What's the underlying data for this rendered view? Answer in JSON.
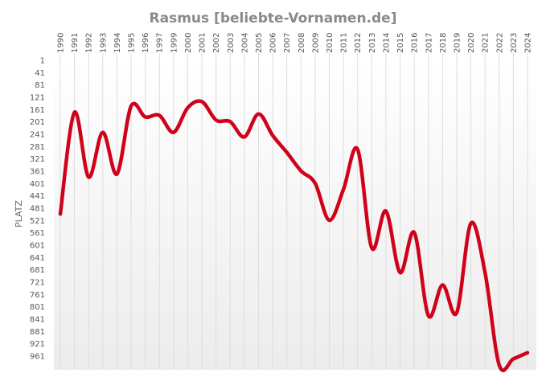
{
  "chart_data": {
    "type": "line",
    "title": "Rasmus [beliebte-Vornamen.de]",
    "xlabel": "",
    "ylabel": "PLATZ",
    "y_inverted": true,
    "ylim": [
      1,
      1000
    ],
    "y_ticks": [
      1,
      41,
      81,
      121,
      161,
      201,
      241,
      281,
      321,
      361,
      401,
      441,
      481,
      521,
      561,
      601,
      641,
      681,
      721,
      761,
      801,
      841,
      881,
      921,
      961
    ],
    "x_tick_rotation": "vertical",
    "grid": "vertical lines",
    "x": [
      "1990",
      "1991",
      "1992",
      "1993",
      "1994",
      "1995",
      "1996",
      "1997",
      "1999",
      "2000",
      "2001",
      "2002",
      "2003",
      "2004",
      "2005",
      "2006",
      "2007",
      "2008",
      "2009",
      "2010",
      "2011",
      "2012",
      "2013",
      "2014",
      "2015",
      "2016",
      "2017",
      "2018",
      "2019",
      "2020",
      "2021",
      "2022",
      "2023",
      "2024"
    ],
    "series": [
      {
        "name": "",
        "color": "#d0021b",
        "values": [
          500,
          170,
          380,
          235,
          370,
          150,
          185,
          180,
          235,
          155,
          135,
          195,
          200,
          250,
          175,
          245,
          300,
          360,
          400,
          520,
          420,
          290,
          610,
          490,
          690,
          560,
          830,
          730,
          820,
          530,
          690,
          990,
          970,
          950
        ]
      }
    ]
  }
}
